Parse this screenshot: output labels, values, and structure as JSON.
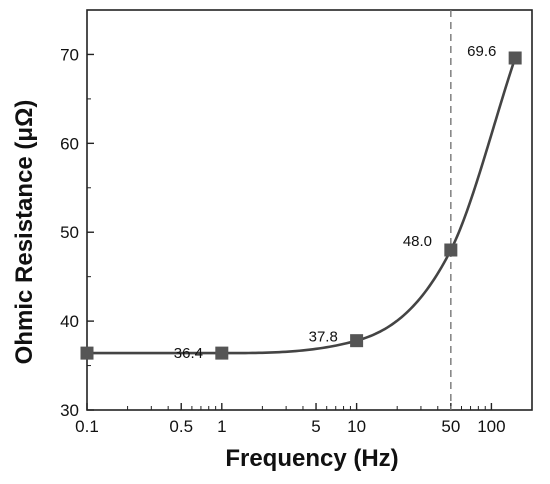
{
  "chart_data": {
    "type": "scatter",
    "xlabel": "Frequency (Hz)",
    "ylabel": "Ohmic Resistance (μΩ)",
    "x_scale": "log",
    "xlim": [
      0.1,
      200
    ],
    "ylim": [
      30,
      75
    ],
    "x_ticks": [
      0.1,
      0.5,
      1,
      5,
      10,
      50,
      100
    ],
    "x_tick_labels": [
      "0.1",
      "0.5",
      "1",
      "5",
      "10",
      "50",
      "100"
    ],
    "y_ticks": [
      30,
      40,
      50,
      60,
      70
    ],
    "y_tick_labels": [
      "30",
      "40",
      "50",
      "60",
      "70"
    ],
    "points": [
      {
        "x": 0.1,
        "y": 36.4,
        "label": ""
      },
      {
        "x": 1,
        "y": 36.4,
        "label": "36.4"
      },
      {
        "x": 10,
        "y": 37.8,
        "label": "37.8"
      },
      {
        "x": 50,
        "y": 48.0,
        "label": "48.0"
      },
      {
        "x": 150,
        "y": 69.6,
        "label": "69.6"
      }
    ],
    "reference_line_x": 50,
    "fit_curve": true,
    "grid": false,
    "marker_color": "#555555",
    "line_color": "#444444",
    "reference_line_color": "#777777"
  }
}
